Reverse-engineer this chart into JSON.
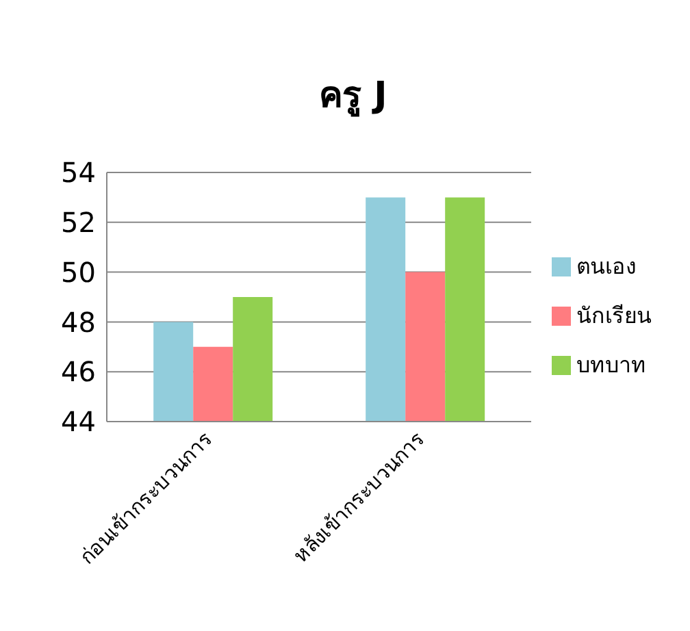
{
  "chart_data": {
    "type": "bar",
    "title": "ครู J",
    "categories": [
      "ก่อนเข้ากระบวนการ",
      "หลังเข้ากระบวนการ"
    ],
    "series": [
      {
        "name": "ตนเอง",
        "color": "#92cddc",
        "values": [
          48,
          53
        ]
      },
      {
        "name": "นักเรียน",
        "color": "#ff7c80",
        "values": [
          47,
          50
        ]
      },
      {
        "name": "บทบาท",
        "color": "#92d050",
        "values": [
          49,
          53
        ]
      }
    ],
    "ylim": [
      44,
      54
    ],
    "yticks": [
      44,
      46,
      48,
      50,
      52,
      54
    ],
    "grid": "y",
    "legend": "right"
  }
}
